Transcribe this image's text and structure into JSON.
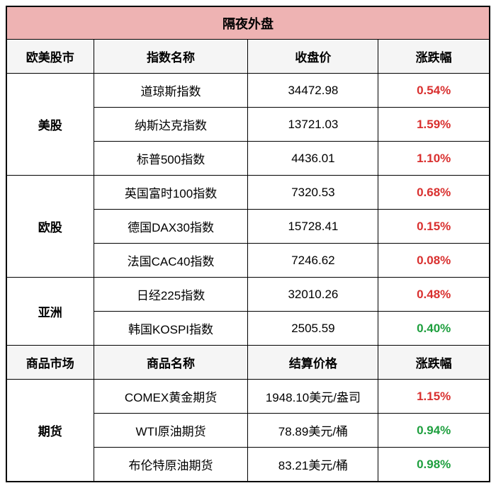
{
  "colors": {
    "title_bg": "#eeb3b3",
    "header_bg": "#f5f5f5",
    "up": "#d9302f",
    "down": "#1e9f3e",
    "border": "#000000",
    "text": "#000000"
  },
  "title": "隔夜外盘",
  "header1": {
    "market": "欧美股市",
    "index": "指数名称",
    "close": "收盘价",
    "change": "涨跌幅"
  },
  "sections": [
    {
      "group": "美股",
      "rows": [
        {
          "name": "道琼斯指数",
          "price": "34472.98",
          "change": "0.54%",
          "dir": "up"
        },
        {
          "name": "纳斯达克指数",
          "price": "13721.03",
          "change": "1.59%",
          "dir": "up"
        },
        {
          "name": "标普500指数",
          "price": "4436.01",
          "change": "1.10%",
          "dir": "up"
        }
      ]
    },
    {
      "group": "欧股",
      "rows": [
        {
          "name": "英国富时100指数",
          "price": "7320.53",
          "change": "0.68%",
          "dir": "up"
        },
        {
          "name": "德国DAX30指数",
          "price": "15728.41",
          "change": "0.15%",
          "dir": "up"
        },
        {
          "name": "法国CAC40指数",
          "price": "7246.62",
          "change": "0.08%",
          "dir": "up"
        }
      ]
    },
    {
      "group": "亚洲",
      "rows": [
        {
          "name": "日经225指数",
          "price": "32010.26",
          "change": "0.48%",
          "dir": "up"
        },
        {
          "name": "韩国KOSPI指数",
          "price": "2505.59",
          "change": "0.40%",
          "dir": "down"
        }
      ]
    }
  ],
  "header2": {
    "market": "商品市场",
    "index": "商品名称",
    "close": "结算价格",
    "change": "涨跌幅"
  },
  "commodities": {
    "group": "期货",
    "rows": [
      {
        "name": "COMEX黄金期货",
        "price": "1948.10美元/盎司",
        "change": "1.15%",
        "dir": "up"
      },
      {
        "name": "WTI原油期货",
        "price": "78.89美元/桶",
        "change": "0.94%",
        "dir": "down"
      },
      {
        "name": "布伦特原油期货",
        "price": "83.21美元/桶",
        "change": "0.98%",
        "dir": "down"
      }
    ]
  }
}
